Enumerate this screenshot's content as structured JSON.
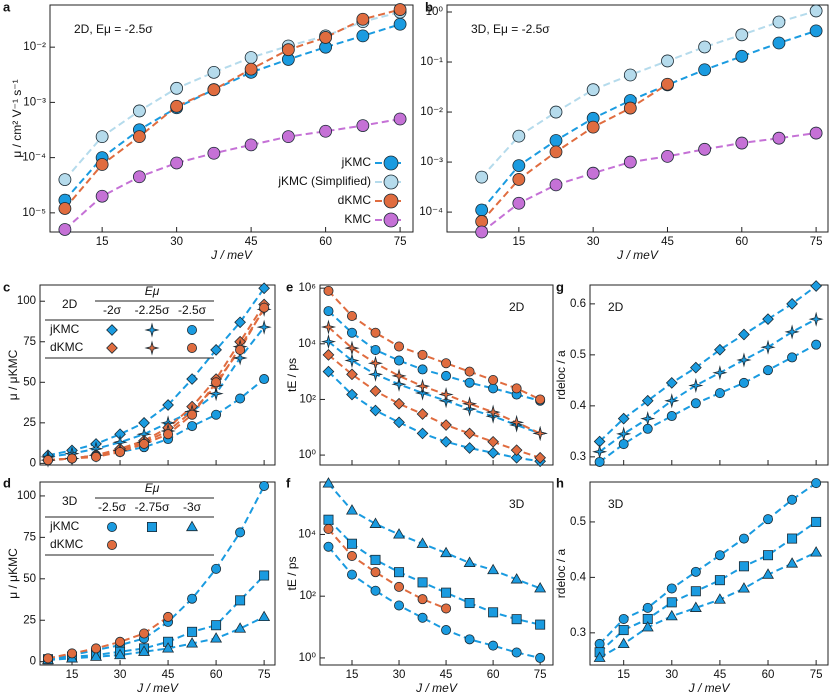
{
  "chart_data": [
    {
      "type": "line",
      "panel": "a",
      "annotation": "2D, Eμ = -2.5σ",
      "xlabel": "J / meV",
      "ylabel": "μ / cm² V⁻¹ s⁻¹",
      "x": [
        7.5,
        15,
        22.5,
        30,
        37.5,
        45,
        52.5,
        60,
        67.5,
        75
      ],
      "xlim": [
        4.5,
        77.6
      ],
      "xticks": [
        15,
        30,
        45,
        60,
        75
      ],
      "log_y": true,
      "ylim": [
        4.5e-06,
        0.058
      ],
      "yticks": [
        {
          "value": 1e-05,
          "label": "10⁻⁵"
        },
        {
          "value": 0.0001,
          "label": "10⁻⁴"
        },
        {
          "value": 0.001,
          "label": "10⁻³"
        },
        {
          "value": 0.01,
          "label": "10⁻²"
        }
      ],
      "legend": "lower right",
      "series": [
        {
          "name": "jKMC",
          "color": "#1a9be0",
          "marker": "circle",
          "values": [
            1.7e-05,
            0.0001,
            0.00032,
            0.0008,
            0.0017,
            0.0035,
            0.006,
            0.01,
            0.016,
            0.026
          ]
        },
        {
          "name": "jKMC (Simplified)",
          "color": "#b5dbec",
          "marker": "circle",
          "values": [
            4e-05,
            0.00024,
            0.0007,
            0.0018,
            0.0035,
            0.0065,
            0.0105,
            0.016,
            0.029,
            0.043
          ]
        },
        {
          "name": "dKMC",
          "color": "#e06c3f",
          "marker": "circle",
          "values": [
            1.2e-05,
            7.5e-05,
            0.00024,
            0.00085,
            0.0017,
            0.004,
            0.009,
            0.015,
            0.032,
            0.048
          ]
        },
        {
          "name": "KMC",
          "color": "#c571d6",
          "marker": "circle",
          "values": [
            5e-06,
            2e-05,
            4.5e-05,
            8e-05,
            0.00012,
            0.00017,
            0.00024,
            0.0003,
            0.00038,
            0.0005
          ]
        }
      ]
    },
    {
      "type": "line",
      "panel": "b",
      "annotation": "3D, Eμ = -2.5σ",
      "xlabel": "J / meV",
      "x": [
        7.5,
        15,
        22.5,
        30,
        37.5,
        45,
        52.5,
        60,
        67.5,
        75
      ],
      "xlim": [
        0.5,
        77.4
      ],
      "xticks": [
        15,
        30,
        45,
        60,
        75
      ],
      "log_y": true,
      "ylim": [
        4e-05,
        1.38
      ],
      "yticks": [
        {
          "value": 0.0001,
          "label": "10⁻⁴"
        },
        {
          "value": 0.001,
          "label": "10⁻³"
        },
        {
          "value": 0.01,
          "label": "10⁻²"
        },
        {
          "value": 0.1,
          "label": "10⁻¹"
        },
        {
          "value": 1,
          "label": "10⁰"
        }
      ],
      "series": [
        {
          "color": "#1a9be0",
          "marker": "circle",
          "values": [
            0.00011,
            0.00085,
            0.0027,
            0.0075,
            0.017,
            0.035,
            0.07,
            0.13,
            0.24,
            0.42
          ]
        },
        {
          "color": "#b5dbec",
          "marker": "circle",
          "values": [
            0.0005,
            0.0033,
            0.01,
            0.028,
            0.055,
            0.105,
            0.2,
            0.35,
            0.63,
            1.05
          ]
        },
        {
          "color": "#e06c3f",
          "marker": "circle",
          "values": [
            6.5e-05,
            0.00045,
            0.0016,
            0.005,
            0.012,
            0.036,
            null,
            null,
            null,
            null
          ]
        },
        {
          "color": "#c571d6",
          "marker": "circle",
          "values": [
            4e-05,
            0.00015,
            0.00035,
            0.0006,
            0.001,
            0.0013,
            0.0018,
            0.0024,
            0.003,
            0.0038
          ]
        }
      ]
    },
    {
      "type": "line",
      "panel": "c",
      "ylabel": "μ / μKMC",
      "x": [
        7.5,
        15,
        22.5,
        30,
        37.5,
        45,
        52.5,
        60,
        67.5,
        75
      ],
      "xlim": [
        5,
        78.4
      ],
      "xticks": [
        15,
        30,
        45,
        60,
        75
      ],
      "ylim": [
        -1,
        110
      ],
      "yticks": [
        0,
        25,
        50,
        75,
        100
      ],
      "legend_table": {
        "title": "2D",
        "header": "Eμ",
        "columns": [
          "-2σ",
          "-2.25σ",
          "-2.5σ"
        ],
        "rows": [
          {
            "label": "jKMC",
            "series": [
              0,
              1,
              2
            ]
          },
          {
            "label": "dKMC",
            "series": [
              3,
              4,
              5
            ]
          }
        ]
      },
      "series": [
        {
          "color": "#1a9be0",
          "marker": "diamond",
          "values": [
            5,
            8,
            12,
            18,
            25,
            36,
            52,
            70,
            87,
            108
          ]
        },
        {
          "color": "#1a9be0",
          "marker": "star",
          "values": [
            4,
            6,
            9,
            13,
            18,
            25,
            32,
            43,
            65,
            84
          ]
        },
        {
          "color": "#1a9be0",
          "marker": "circle",
          "values": [
            2,
            3,
            5,
            7,
            10,
            15,
            23,
            30,
            40,
            52
          ]
        },
        {
          "color": "#e06c3f",
          "marker": "diamond",
          "values": [
            2,
            3,
            5,
            9,
            14,
            22,
            35,
            52,
            75,
            98
          ]
        },
        {
          "color": "#e06c3f",
          "marker": "star",
          "values": [
            2,
            3,
            5,
            8,
            13,
            20,
            32,
            48,
            72,
            95
          ]
        },
        {
          "color": "#e06c3f",
          "marker": "circle",
          "values": [
            2,
            3,
            4,
            7,
            12,
            18,
            30,
            50,
            70,
            96
          ]
        }
      ]
    },
    {
      "type": "line",
      "panel": "d",
      "xlabel": "J / meV",
      "ylabel": "μ / μKMC",
      "x": [
        7.5,
        15,
        22.5,
        30,
        37.5,
        45,
        52.5,
        60,
        67.5,
        75
      ],
      "xlim": [
        5,
        78.4
      ],
      "xticks": [
        15,
        30,
        45,
        60,
        75
      ],
      "ylim": [
        -2,
        108.4
      ],
      "yticks": [
        0,
        25,
        50,
        75,
        100
      ],
      "legend_table": {
        "title": "3D",
        "header": "Eμ",
        "columns": [
          "-2.5σ",
          "-2.75σ",
          "-3σ"
        ],
        "rows": [
          {
            "label": "jKMC",
            "series": [
              0,
              1,
              2
            ]
          },
          {
            "label": "dKMC",
            "series": [
              3
            ]
          }
        ]
      },
      "series": [
        {
          "color": "#1a9be0",
          "marker": "circle",
          "values": [
            2,
            4,
            7,
            10,
            14,
            24,
            38,
            56,
            78,
            106
          ]
        },
        {
          "color": "#1a9be0",
          "marker": "square",
          "values": [
            1.5,
            3,
            4,
            6,
            8,
            12,
            18,
            22,
            37,
            52
          ]
        },
        {
          "color": "#1a9be0",
          "marker": "triangle",
          "values": [
            1,
            2,
            3,
            4,
            6,
            8,
            11,
            14,
            20,
            27
          ]
        },
        {
          "color": "#e06c3f",
          "marker": "circle",
          "values": [
            2,
            5,
            8,
            12,
            17,
            27,
            null,
            null,
            null,
            null
          ]
        }
      ]
    },
    {
      "type": "line",
      "panel": "e",
      "annotation": "2D",
      "ylabel": "tE / ps",
      "x": [
        7.5,
        15,
        22.5,
        30,
        37.5,
        45,
        52.5,
        60,
        67.5,
        75
      ],
      "xlim": [
        4.8,
        79.1
      ],
      "xticks": [
        15,
        30,
        45,
        60,
        75
      ],
      "log_y": true,
      "ylim": [
        0.44,
        1300000
      ],
      "yticks": [
        {
          "value": 1,
          "label": "10⁰"
        },
        {
          "value": 100,
          "label": "10²"
        },
        {
          "value": 10000,
          "label": "10⁴"
        },
        {
          "value": 1000000,
          "label": "10⁶"
        }
      ],
      "series": [
        {
          "color": "#1a9be0",
          "marker": "diamond",
          "values": [
            1000,
            150,
            40,
            15,
            6,
            3,
            1.8,
            1.2,
            0.8,
            0.6
          ]
        },
        {
          "color": "#1a9be0",
          "marker": "star",
          "values": [
            12000,
            2500,
            800,
            350,
            170,
            90,
            45,
            25,
            12,
            6
          ]
        },
        {
          "color": "#1a9be0",
          "marker": "circle",
          "values": [
            150000,
            25000,
            6000,
            2500,
            1200,
            700,
            400,
            250,
            150,
            90
          ]
        },
        {
          "color": "#e06c3f",
          "marker": "diamond",
          "values": [
            4000,
            800,
            200,
            70,
            30,
            12,
            6,
            3,
            1.5,
            0.8
          ]
        },
        {
          "color": "#e06c3f",
          "marker": "star",
          "values": [
            40000,
            7000,
            2000,
            700,
            300,
            150,
            70,
            35,
            15,
            6
          ]
        },
        {
          "color": "#e06c3f",
          "marker": "circle",
          "values": [
            800000,
            100000,
            25000,
            8000,
            4000,
            2000,
            1000,
            500,
            250,
            100
          ]
        }
      ]
    },
    {
      "type": "line",
      "panel": "f",
      "annotation": "3D",
      "xlabel": "J / meV",
      "ylabel": "tE / ps",
      "x": [
        7.5,
        15,
        22.5,
        30,
        37.5,
        45,
        52.5,
        60,
        67.5,
        75
      ],
      "xlim": [
        4.8,
        79.1
      ],
      "xticks": [
        15,
        30,
        45,
        60,
        75
      ],
      "log_y": true,
      "ylim": [
        0.59,
        500000
      ],
      "yticks": [
        {
          "value": 1,
          "label": "10⁰"
        },
        {
          "value": 100,
          "label": "10²"
        },
        {
          "value": 10000,
          "label": "10⁴"
        }
      ],
      "series": [
        {
          "color": "#1a9be0",
          "marker": "circle",
          "values": [
            4000,
            500,
            150,
            50,
            20,
            8,
            4,
            2.5,
            1.5,
            1
          ]
        },
        {
          "color": "#1a9be0",
          "marker": "square",
          "values": [
            30000,
            5000,
            1500,
            600,
            280,
            130,
            60,
            30,
            18,
            12
          ]
        },
        {
          "color": "#1a9be0",
          "marker": "triangle",
          "values": [
            450000,
            60000,
            22000,
            10000,
            5000,
            2500,
            1200,
            700,
            350,
            180
          ]
        },
        {
          "color": "#e06c3f",
          "marker": "circle",
          "values": [
            15000,
            2000,
            600,
            200,
            80,
            40,
            null,
            null,
            null,
            null
          ]
        }
      ]
    },
    {
      "type": "line",
      "panel": "g",
      "annotation": "2D",
      "ylabel": "rdeloc / a",
      "x": [
        7.5,
        15,
        22.5,
        30,
        37.5,
        45,
        52.5,
        60,
        67.5,
        75
      ],
      "xlim": [
        4.5,
        78.7
      ],
      "xticks": [
        15,
        30,
        45,
        60,
        75
      ],
      "ylim": [
        0.284,
        0.637
      ],
      "yticks": [
        0.3,
        0.4,
        0.5,
        0.6
      ],
      "series": [
        {
          "color": "#1a9be0",
          "marker": "diamond",
          "values": [
            0.33,
            0.375,
            0.41,
            0.445,
            0.475,
            0.51,
            0.54,
            0.57,
            0.6,
            0.635
          ]
        },
        {
          "color": "#1a9be0",
          "marker": "star",
          "values": [
            0.31,
            0.345,
            0.375,
            0.41,
            0.44,
            0.465,
            0.49,
            0.515,
            0.545,
            0.57
          ]
        },
        {
          "color": "#1a9be0",
          "marker": "circle",
          "values": [
            0.29,
            0.325,
            0.355,
            0.38,
            0.405,
            0.425,
            0.445,
            0.47,
            0.495,
            0.52
          ]
        }
      ]
    },
    {
      "type": "line",
      "panel": "h",
      "annotation": "3D",
      "xlabel": "J / meV",
      "ylabel": "rdeloc / a",
      "x": [
        7.5,
        15,
        22.5,
        30,
        37.5,
        45,
        52.5,
        60,
        67.5,
        75
      ],
      "xlim": [
        4.5,
        78.7
      ],
      "xticks": [
        15,
        30,
        45,
        60,
        75
      ],
      "ylim": [
        0.242,
        0.572
      ],
      "yticks": [
        0.3,
        0.4,
        0.5
      ],
      "series": [
        {
          "color": "#1a9be0",
          "marker": "circle",
          "values": [
            0.28,
            0.325,
            0.345,
            0.38,
            0.41,
            0.44,
            0.47,
            0.505,
            0.54,
            0.57
          ]
        },
        {
          "color": "#1a9be0",
          "marker": "square",
          "values": [
            0.265,
            0.305,
            0.325,
            0.355,
            0.375,
            0.395,
            0.42,
            0.44,
            0.47,
            0.5
          ]
        },
        {
          "color": "#1a9be0",
          "marker": "triangle",
          "values": [
            0.255,
            0.28,
            0.31,
            0.33,
            0.345,
            0.36,
            0.38,
            0.405,
            0.425,
            0.445
          ]
        }
      ]
    }
  ]
}
